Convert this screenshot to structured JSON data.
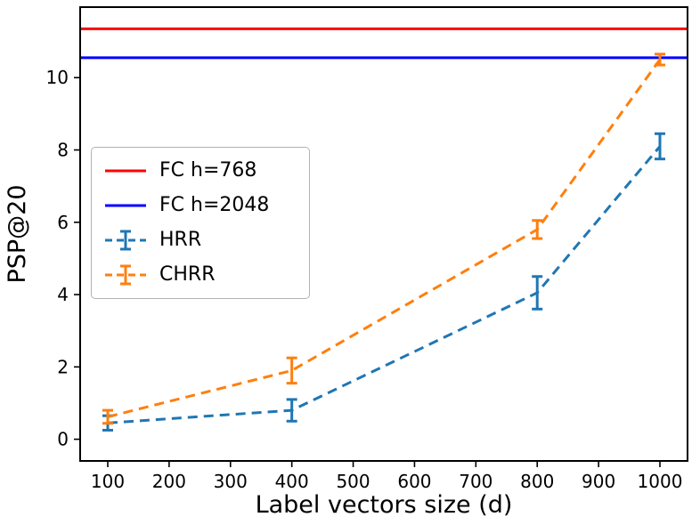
{
  "chart_data": {
    "type": "line",
    "title": "",
    "xlabel": "Label vectors size (d)",
    "ylabel": "PSP@20",
    "xlim": [
      55,
      1045
    ],
    "ylim": [
      -0.6,
      11.95
    ],
    "xticks": [
      100,
      200,
      300,
      400,
      500,
      600,
      700,
      800,
      900,
      1000
    ],
    "yticks": [
      0,
      2,
      4,
      6,
      8,
      10
    ],
    "grid": false,
    "axis_color": "#000000",
    "hlines": [
      {
        "label": "FC h=768",
        "y": 11.35,
        "color": "#ff0000",
        "style": "solid"
      },
      {
        "label": "FC h=2048",
        "y": 10.55,
        "color": "#0000ff",
        "style": "solid"
      }
    ],
    "series": [
      {
        "name": "HRR",
        "color": "#1f77b4",
        "style": "dashed",
        "x": [
          100,
          400,
          800,
          1000
        ],
        "y": [
          0.45,
          0.8,
          4.05,
          8.1
        ],
        "yerr": [
          0.2,
          0.3,
          0.45,
          0.35
        ]
      },
      {
        "name": "CHRR",
        "color": "#ff7f0e",
        "style": "dashed",
        "x": [
          100,
          400,
          800,
          1000
        ],
        "y": [
          0.62,
          1.9,
          5.8,
          10.5
        ],
        "yerr": [
          0.18,
          0.35,
          0.25,
          0.15
        ]
      }
    ],
    "legend": {
      "position": "upper-left",
      "entries": [
        {
          "label": "FC h=768",
          "color": "#ff0000",
          "marker": "line"
        },
        {
          "label": "FC h=2048",
          "color": "#0000ff",
          "marker": "line"
        },
        {
          "label": "HRR",
          "color": "#1f77b4",
          "marker": "errorbar-dashed"
        },
        {
          "label": "CHRR",
          "color": "#ff7f0e",
          "marker": "errorbar-dashed"
        }
      ]
    }
  }
}
